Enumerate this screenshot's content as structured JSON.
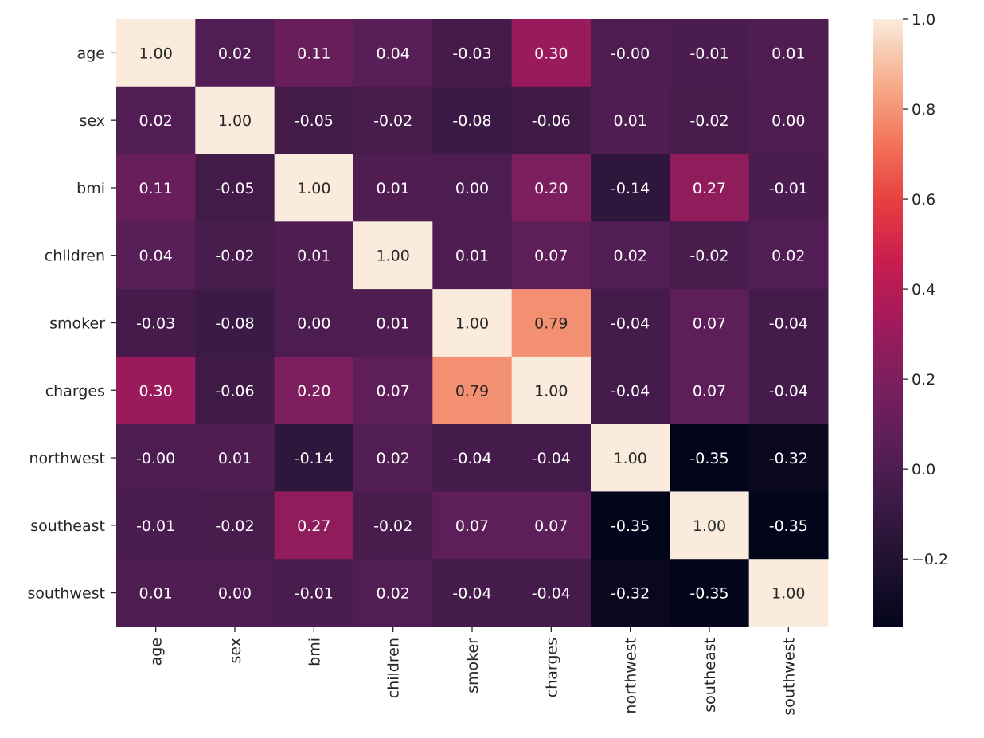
{
  "chart_data": {
    "type": "heatmap",
    "title": "",
    "xlabel": "",
    "ylabel": "",
    "row_labels": [
      "age",
      "sex",
      "bmi",
      "children",
      "smoker",
      "charges",
      "northwest",
      "southeast",
      "southwest"
    ],
    "col_labels": [
      "age",
      "sex",
      "bmi",
      "children",
      "smoker",
      "charges",
      "northwest",
      "southeast",
      "southwest"
    ],
    "values": [
      [
        1.0,
        0.02,
        0.11,
        0.04,
        -0.03,
        0.3,
        -0.0,
        -0.01,
        0.01
      ],
      [
        0.02,
        1.0,
        -0.05,
        -0.02,
        -0.08,
        -0.06,
        0.01,
        -0.02,
        0.0
      ],
      [
        0.11,
        -0.05,
        1.0,
        0.01,
        0.0,
        0.2,
        -0.14,
        0.27,
        -0.01
      ],
      [
        0.04,
        -0.02,
        0.01,
        1.0,
        0.01,
        0.07,
        0.02,
        -0.02,
        0.02
      ],
      [
        -0.03,
        -0.08,
        0.0,
        0.01,
        1.0,
        0.79,
        -0.04,
        0.07,
        -0.04
      ],
      [
        0.3,
        -0.06,
        0.2,
        0.07,
        0.79,
        1.0,
        -0.04,
        0.07,
        -0.04
      ],
      [
        -0.0,
        0.01,
        -0.14,
        0.02,
        -0.04,
        -0.04,
        1.0,
        -0.35,
        -0.32
      ],
      [
        -0.01,
        -0.02,
        0.27,
        -0.02,
        0.07,
        0.07,
        -0.35,
        1.0,
        -0.35
      ],
      [
        0.01,
        0.0,
        -0.01,
        0.02,
        -0.04,
        -0.04,
        -0.32,
        -0.35,
        1.0
      ]
    ],
    "annotations": [
      [
        "1.00",
        "0.02",
        "0.11",
        "0.04",
        "-0.03",
        "0.30",
        "-0.00",
        "-0.01",
        "0.01"
      ],
      [
        "0.02",
        "1.00",
        "-0.05",
        "-0.02",
        "-0.08",
        "-0.06",
        "0.01",
        "-0.02",
        "0.00"
      ],
      [
        "0.11",
        "-0.05",
        "1.00",
        "0.01",
        "0.00",
        "0.20",
        "-0.14",
        "0.27",
        "-0.01"
      ],
      [
        "0.04",
        "-0.02",
        "0.01",
        "1.00",
        "0.01",
        "0.07",
        "0.02",
        "-0.02",
        "0.02"
      ],
      [
        "-0.03",
        "-0.08",
        "0.00",
        "0.01",
        "1.00",
        "0.79",
        "-0.04",
        "0.07",
        "-0.04"
      ],
      [
        "0.30",
        "-0.06",
        "0.20",
        "0.07",
        "0.79",
        "1.00",
        "-0.04",
        "0.07",
        "-0.04"
      ],
      [
        "-0.00",
        "0.01",
        "-0.14",
        "0.02",
        "-0.04",
        "-0.04",
        "1.00",
        "-0.35",
        "-0.32"
      ],
      [
        "-0.01",
        "-0.02",
        "0.27",
        "-0.02",
        "0.07",
        "0.07",
        "-0.35",
        "1.00",
        "-0.35"
      ],
      [
        "0.01",
        "0.00",
        "-0.01",
        "0.02",
        "-0.04",
        "-0.04",
        "-0.32",
        "-0.35",
        "1.00"
      ]
    ],
    "colorbar": {
      "vmin": -0.35,
      "vmax": 1.0,
      "ticks": [
        -0.2,
        0.0,
        0.2,
        0.4,
        0.6,
        0.8,
        1.0
      ],
      "tick_labels": [
        "−0.2",
        "0.0",
        "0.2",
        "0.4",
        "0.6",
        "0.8",
        "1.0"
      ],
      "colormap": "rocket",
      "colormap_stops": [
        [
          0.0,
          "#03051a"
        ],
        [
          0.1,
          "#1f1130"
        ],
        [
          0.2,
          "#3b1a45"
        ],
        [
          0.3,
          "#5a1e59"
        ],
        [
          0.4,
          "#7a1f5e"
        ],
        [
          0.5,
          "#a11a5b"
        ],
        [
          0.6,
          "#c81c4f"
        ],
        [
          0.7,
          "#e73f40"
        ],
        [
          0.8,
          "#f3765b"
        ],
        [
          0.9,
          "#f6b08f"
        ],
        [
          1.0,
          "#faebdd"
        ]
      ]
    },
    "grid": false
  }
}
